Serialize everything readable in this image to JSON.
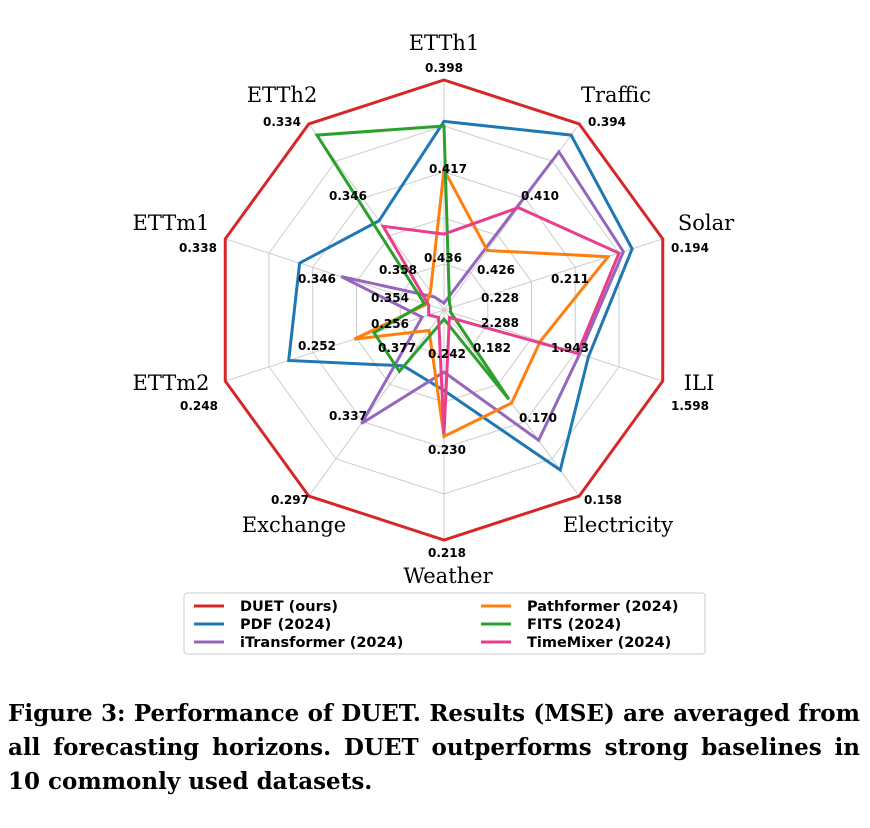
{
  "chart_data": {
    "type": "radar",
    "axes": [
      "ETTh1",
      "Traffic",
      "Solar",
      "ILI",
      "Electricity",
      "Weather",
      "Exchange",
      "ETTm2",
      "ETTm1",
      "ETTh2"
    ],
    "edge_labels": [
      "0.398",
      "0.394",
      "0.194",
      "1.598",
      "0.158",
      "0.218",
      "0.297",
      "0.248",
      "0.338",
      "0.334"
    ],
    "inner_labels": [
      "0.417",
      "0.410",
      "0.211",
      "1.943",
      "0.170",
      "0.230",
      "0.337",
      "0.252",
      "0.346",
      "0.346"
    ],
    "inner2_labels": [
      "0.436",
      "0.426",
      "0.228",
      "2.288",
      "0.182",
      "0.242",
      "0.377",
      "0.256",
      "0.354",
      "0.358"
    ],
    "series": [
      {
        "name": "DUET (ours)",
        "color": "#d62728",
        "values": [
          1.0,
          1.0,
          1.0,
          1.0,
          1.0,
          1.0,
          1.0,
          1.0,
          1.0,
          1.0
        ]
      },
      {
        "name": "PDF (2024)",
        "color": "#1f77b4",
        "values": [
          0.82,
          0.94,
          0.86,
          0.66,
          0.86,
          0.35,
          0.3,
          0.71,
          0.66,
          0.48
        ]
      },
      {
        "name": "iTransformer (2024)",
        "color": "#9467bd",
        "values": [
          0.03,
          0.85,
          0.82,
          0.62,
          0.7,
          0.27,
          0.61,
          0.1,
          0.47,
          0.07
        ]
      },
      {
        "name": "Pathformer (2024)",
        "color": "#ff7f0e",
        "values": [
          0.61,
          0.32,
          0.75,
          0.44,
          0.5,
          0.55,
          0.11,
          0.41,
          0.08,
          0.1
        ]
      },
      {
        "name": "FITS (2024)",
        "color": "#2ca02c",
        "values": [
          0.8,
          0.04,
          0.03,
          0.03,
          0.48,
          0.04,
          0.33,
          0.32,
          0.09,
          0.94
        ]
      },
      {
        "name": "TimeMixer (2024)",
        "color": "#e83e8c",
        "values": [
          0.33,
          0.55,
          0.8,
          0.61,
          0.04,
          0.54,
          0.04,
          0.07,
          0.07,
          0.45
        ]
      }
    ],
    "grid_levels": 5,
    "legend_position": "bottom"
  },
  "caption": "Figure 3: Performance of DUET. Results (MSE) are averaged from all forecasting horizons. DUET outperforms strong baselines in 10 commonly used datasets."
}
